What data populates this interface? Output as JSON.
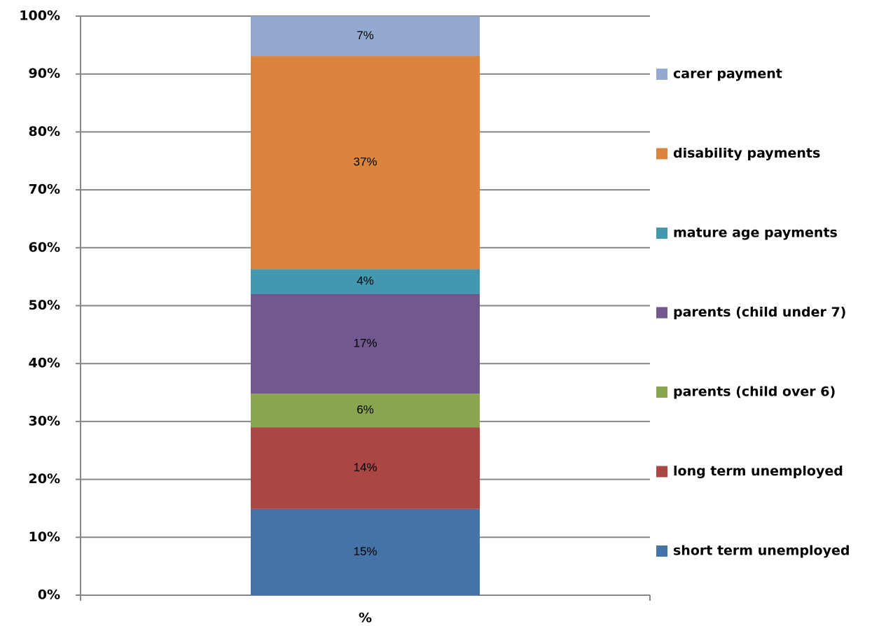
{
  "chart_data": {
    "type": "stacked_bar",
    "categories": [
      "%"
    ],
    "series": [
      {
        "name": "short term unemployed",
        "color": "#4572a7",
        "values": [
          14.9
        ],
        "value_labels": [
          "15%"
        ]
      },
      {
        "name": "long term unemployed",
        "color": "#aa4643",
        "values": [
          14.1
        ],
        "value_labels": [
          "14%"
        ]
      },
      {
        "name": "parents (child over 6)",
        "color": "#89a54e",
        "values": [
          5.8
        ],
        "value_labels": [
          "6%"
        ]
      },
      {
        "name": "parents (child under 7)",
        "color": "#71588f",
        "values": [
          17.2
        ],
        "value_labels": [
          "17%"
        ]
      },
      {
        "name": "mature age payments",
        "color": "#4198af",
        "values": [
          4.3
        ],
        "value_labels": [
          "4%"
        ]
      },
      {
        "name": "disability payments",
        "color": "#db843d",
        "values": [
          36.8
        ],
        "value_labels": [
          "37%"
        ]
      },
      {
        "name": "carer payment",
        "color": "#93a9cf",
        "values": [
          6.9
        ],
        "value_labels": [
          "7%"
        ]
      }
    ],
    "ylim": [
      0,
      100
    ],
    "yticks": [
      {
        "value": 0,
        "label": "0%"
      },
      {
        "value": 10,
        "label": "10%"
      },
      {
        "value": 20,
        "label": "20%"
      },
      {
        "value": 30,
        "label": "30%"
      },
      {
        "value": 40,
        "label": "40%"
      },
      {
        "value": 50,
        "label": "50%"
      },
      {
        "value": 60,
        "label": "60%"
      },
      {
        "value": 70,
        "label": "70%"
      },
      {
        "value": 80,
        "label": "80%"
      },
      {
        "value": 90,
        "label": "90%"
      },
      {
        "value": 100,
        "label": "100%"
      }
    ],
    "grid": true,
    "legend": "right"
  }
}
